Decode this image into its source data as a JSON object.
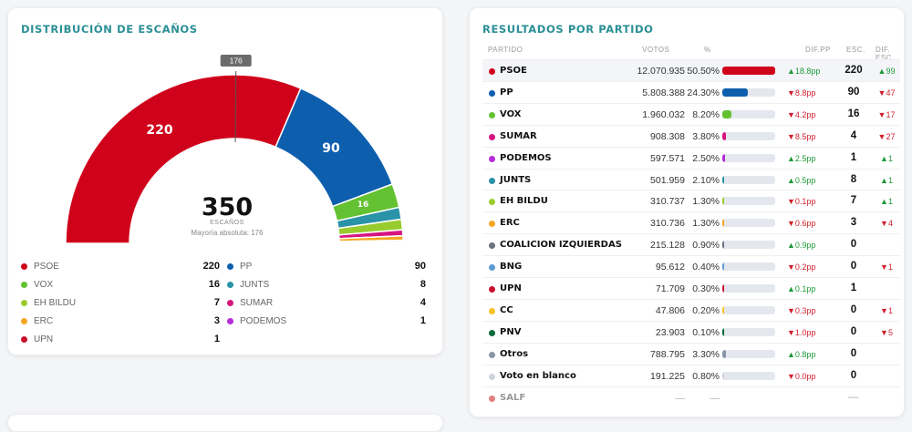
{
  "left_card": {
    "title": "DISTRIBUCIÓN DE ESCAÑOS",
    "majority_tag": "176",
    "total_seats": "350",
    "seats_label": "ESCAÑOS",
    "majority_text": "Mayoría absoluta: 176",
    "arc_labels": [
      "220",
      "90",
      "16"
    ],
    "legend": [
      {
        "name": "PSOE",
        "seats": "220",
        "color": "#d0021b"
      },
      {
        "name": "PP",
        "seats": "90",
        "color": "#0d5fae"
      },
      {
        "name": "VOX",
        "seats": "16",
        "color": "#63c132"
      },
      {
        "name": "JUNTS",
        "seats": "8",
        "color": "#2a93a8"
      },
      {
        "name": "EH BILDU",
        "seats": "7",
        "color": "#98cc2e"
      },
      {
        "name": "SUMAR",
        "seats": "4",
        "color": "#d6157f"
      },
      {
        "name": "ERC",
        "seats": "3",
        "color": "#f5a623"
      },
      {
        "name": "PODEMOS",
        "seats": "1",
        "color": "#b62bd6"
      },
      {
        "name": "UPN",
        "seats": "1",
        "color": "#c8102e"
      }
    ]
  },
  "chart_data": {
    "type": "pie",
    "title": "DISTRIBUCIÓN DE ESCAÑOS",
    "total": 350,
    "majority": 176,
    "categories": [
      "PSOE",
      "PP",
      "VOX",
      "JUNTS",
      "EH BILDU",
      "SUMAR",
      "ERC",
      "PODEMOS",
      "UPN"
    ],
    "values": [
      220,
      90,
      16,
      8,
      7,
      4,
      3,
      1,
      1
    ],
    "colors": [
      "#d0021b",
      "#0d5fae",
      "#63c132",
      "#2a93a8",
      "#98cc2e",
      "#d6157f",
      "#f5a623",
      "#b62bd6",
      "#c8102e"
    ]
  },
  "right_card": {
    "title": "RESULTADOS POR PARTIDO",
    "headers": {
      "partido": "PARTIDO",
      "votos": "VOTOS",
      "pct": "%",
      "difpp": "DIF.PP",
      "esc": "ESC.",
      "difesc": "DIF. ESC."
    },
    "rows": [
      {
        "name": "PSOE",
        "votes": "12.070.935",
        "pct": "50.50%",
        "share": 50.5,
        "dif": "▲18.8pp",
        "dif_dir": "up",
        "esc": "220",
        "difesc": "▲99",
        "difesc_dir": "up",
        "color": "#d0021b"
      },
      {
        "name": "PP",
        "votes": "5.808.388",
        "pct": "24.30%",
        "share": 24.3,
        "dif": "▼8.8pp",
        "dif_dir": "down",
        "esc": "90",
        "difesc": "▼47",
        "difesc_dir": "down",
        "color": "#0d5fae"
      },
      {
        "name": "VOX",
        "votes": "1.960.032",
        "pct": "8.20%",
        "share": 8.2,
        "dif": "▼4.2pp",
        "dif_dir": "down",
        "esc": "16",
        "difesc": "▼17",
        "difesc_dir": "down",
        "color": "#63c132"
      },
      {
        "name": "SUMAR",
        "votes": "908.308",
        "pct": "3.80%",
        "share": 3.8,
        "dif": "▼8.5pp",
        "dif_dir": "down",
        "esc": "4",
        "difesc": "▼27",
        "difesc_dir": "down",
        "color": "#d6157f"
      },
      {
        "name": "PODEMOS",
        "votes": "597.571",
        "pct": "2.50%",
        "share": 2.5,
        "dif": "▲2.5pp",
        "dif_dir": "up",
        "esc": "1",
        "difesc": "▲1",
        "difesc_dir": "up",
        "color": "#b62bd6"
      },
      {
        "name": "JUNTS",
        "votes": "501.959",
        "pct": "2.10%",
        "share": 2.1,
        "dif": "▲0.5pp",
        "dif_dir": "up",
        "esc": "8",
        "difesc": "▲1",
        "difesc_dir": "up",
        "color": "#2a93a8"
      },
      {
        "name": "EH BILDU",
        "votes": "310.737",
        "pct": "1.30%",
        "share": 1.3,
        "dif": "▼0.1pp",
        "dif_dir": "down",
        "esc": "7",
        "difesc": "▲1",
        "difesc_dir": "up",
        "color": "#98cc2e"
      },
      {
        "name": "ERC",
        "votes": "310.736",
        "pct": "1.30%",
        "share": 1.3,
        "dif": "▼0.6pp",
        "dif_dir": "down",
        "esc": "3",
        "difesc": "▼4",
        "difesc_dir": "down",
        "color": "#f5a623"
      },
      {
        "name": "COALICION IZQUIERDAS",
        "votes": "215.128",
        "pct": "0.90%",
        "share": 0.9,
        "dif": "▲0.9pp",
        "dif_dir": "up",
        "esc": "0",
        "difesc": "",
        "difesc_dir": "",
        "color": "#6b7280"
      },
      {
        "name": "BNG",
        "votes": "95.612",
        "pct": "0.40%",
        "share": 0.4,
        "dif": "▼0.2pp",
        "dif_dir": "down",
        "esc": "0",
        "difesc": "▼1",
        "difesc_dir": "down",
        "color": "#5b9bd5"
      },
      {
        "name": "UPN",
        "votes": "71.709",
        "pct": "0.30%",
        "share": 0.3,
        "dif": "▲0.1pp",
        "dif_dir": "up",
        "esc": "1",
        "difesc": "",
        "difesc_dir": "",
        "color": "#c8102e"
      },
      {
        "name": "CC",
        "votes": "47.806",
        "pct": "0.20%",
        "share": 0.2,
        "dif": "▼0.3pp",
        "dif_dir": "down",
        "esc": "0",
        "difesc": "▼1",
        "difesc_dir": "down",
        "color": "#f7c325"
      },
      {
        "name": "PNV",
        "votes": "23.903",
        "pct": "0.10%",
        "share": 0.1,
        "dif": "▼1.0pp",
        "dif_dir": "down",
        "esc": "0",
        "difesc": "▼5",
        "difesc_dir": "down",
        "color": "#0a6b3b"
      },
      {
        "name": "Otros",
        "votes": "788.795",
        "pct": "3.30%",
        "share": 3.3,
        "dif": "▲0.8pp",
        "dif_dir": "up",
        "esc": "0",
        "difesc": "",
        "difesc_dir": "",
        "color": "#8a94a6"
      },
      {
        "name": "Voto en blanco",
        "votes": "191.225",
        "pct": "0.80%",
        "share": 0.8,
        "dif": "▼0.0pp",
        "dif_dir": "down",
        "esc": "0",
        "difesc": "",
        "difesc_dir": "",
        "color": "#cdd2da"
      },
      {
        "name": "SALF",
        "votes": "—",
        "pct": "—",
        "share": 0,
        "dif": "",
        "dif_dir": "",
        "esc": "—",
        "difesc": "",
        "difesc_dir": "",
        "color": "#e08080",
        "muted": true
      }
    ]
  }
}
